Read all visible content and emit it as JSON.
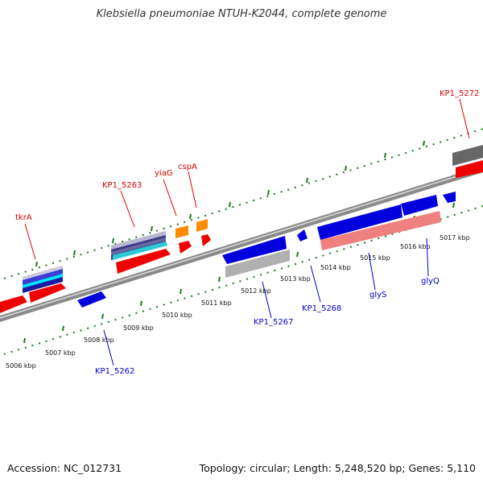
{
  "title": "Klebsiella pneumoniae NTUH-K2044, complete genome",
  "footer": {
    "accession": "Accession: NC_012731",
    "summary": "Topology: circular; Length: 5,248,520 bp; Genes: 5,110"
  },
  "colors": {
    "forward_label": "#dd0000",
    "reverse_label": "#0000cc",
    "tick": "#1a7a1a",
    "backbone": "#8a8a8a"
  },
  "scale": {
    "ticks": [
      "5006 kbp",
      "5007 kbp",
      "5008 kbp",
      "5009 kbp",
      "5010 kbp",
      "5011 kbp",
      "5012 kbp",
      "5013 kbp",
      "5014 kbp",
      "5015 kbp",
      "5016 kbp",
      "5017 kbp"
    ]
  },
  "genes_forward": [
    "tkrA",
    "KP1_5263",
    "yiaG",
    "cspA",
    "KP1_5272"
  ],
  "genes_reverse": [
    "KP1_5262",
    "KP1_5267",
    "KP1_5268",
    "glyS",
    "glyQ"
  ]
}
